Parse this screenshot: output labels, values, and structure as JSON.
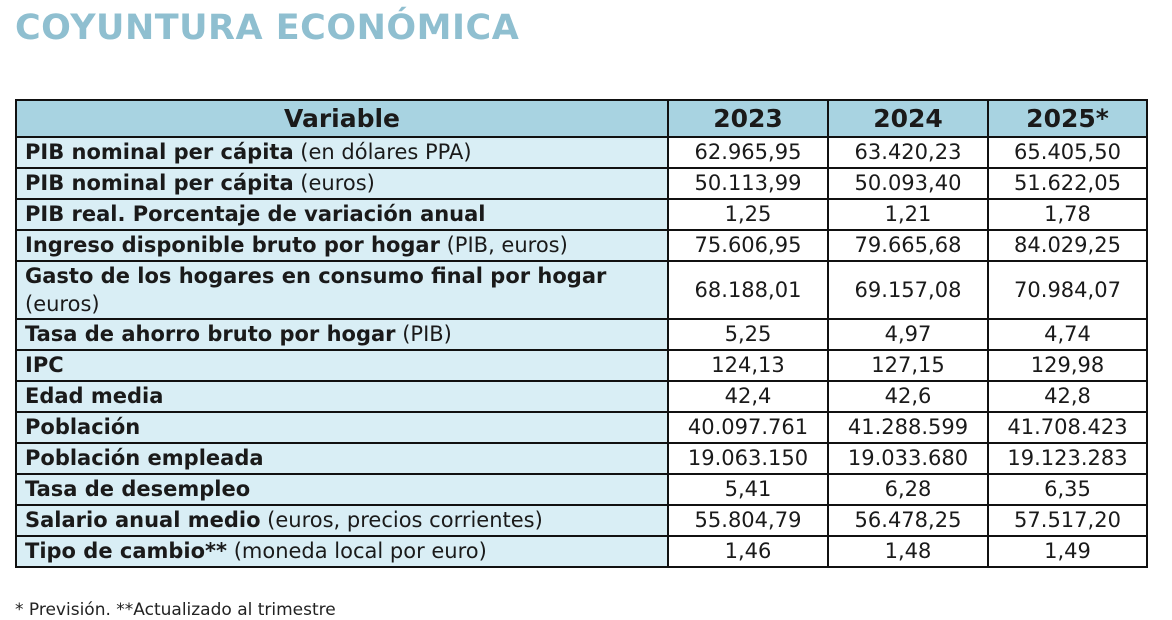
{
  "title": "COYUNTURA ECONÓMICA",
  "table": {
    "headers": [
      "Variable",
      "2023",
      "2024",
      "2025*"
    ],
    "rows": [
      {
        "label": "PIB nominal per cápita",
        "detail": " (en dólares PPA)",
        "values": [
          "62.965,95",
          "63.420,23",
          "65.405,50"
        ]
      },
      {
        "label": "PIB nominal per cápita",
        "detail": " (euros)",
        "values": [
          "50.113,99",
          "50.093,40",
          "51.622,05"
        ]
      },
      {
        "label": "PIB real. Porcentaje de variación anual",
        "detail": "",
        "values": [
          "1,25",
          "1,21",
          "1,78"
        ]
      },
      {
        "label": "Ingreso disponible bruto por hogar",
        "detail": " (PIB, euros)",
        "values": [
          "75.606,95",
          "79.665,68",
          "84.029,25"
        ]
      },
      {
        "label": "Gasto de los hogares en consumo final por hogar",
        "detail": " (euros)",
        "values": [
          "68.188,01",
          "69.157,08",
          "70.984,07"
        ]
      },
      {
        "label": "Tasa de ahorro bruto por hogar",
        "detail": " (PIB)",
        "values": [
          "5,25",
          "4,97",
          "4,74"
        ]
      },
      {
        "label": "IPC",
        "detail": "",
        "values": [
          "124,13",
          "127,15",
          "129,98"
        ]
      },
      {
        "label": "Edad media",
        "detail": "",
        "values": [
          "42,4",
          "42,6",
          "42,8"
        ]
      },
      {
        "label": "Población",
        "detail": "",
        "values": [
          "40.097.761",
          "41.288.599",
          "41.708.423"
        ]
      },
      {
        "label": "Población empleada",
        "detail": "",
        "values": [
          "19.063.150",
          "19.033.680",
          "19.123.283"
        ]
      },
      {
        "label": "Tasa de desempleo",
        "detail": "",
        "values": [
          "5,41",
          "6,28",
          "6,35"
        ]
      },
      {
        "label": "Salario anual medio",
        "detail": " (euros, precios corrientes)",
        "values": [
          "55.804,79",
          "56.478,25",
          "57.517,20"
        ]
      },
      {
        "label": "Tipo de cambio**",
        "detail": " (moneda local por euro)",
        "values": [
          "1,46",
          "1,48",
          "1,49"
        ]
      }
    ]
  },
  "footnote": "* Previsión. **Actualizado al trimestre"
}
